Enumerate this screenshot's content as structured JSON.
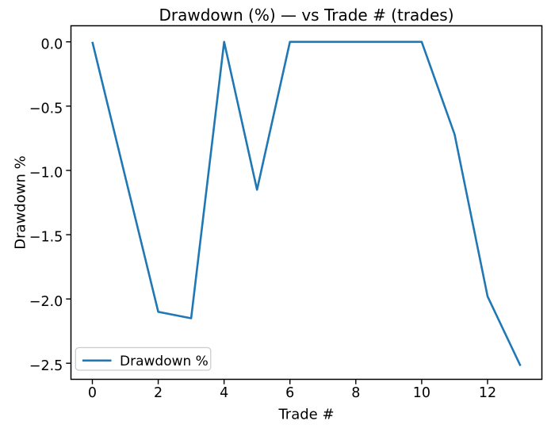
{
  "chart_data": {
    "type": "line",
    "title": "Drawdown (%) — vs Trade # (trades)",
    "xlabel": "Trade #",
    "ylabel": "Drawdown %",
    "legend": [
      "Drawdown %"
    ],
    "legend_position": "lower left",
    "line_color": "#1f77b4",
    "x": [
      0,
      1,
      2,
      3,
      4,
      5,
      6,
      7,
      8,
      9,
      10,
      11,
      12,
      13
    ],
    "y": [
      0,
      -1.05,
      -2.1,
      -2.15,
      0,
      -1.15,
      0,
      0,
      0,
      0,
      0,
      -0.72,
      -1.98,
      -2.52
    ],
    "xlim": [
      -0.65,
      13.65
    ],
    "ylim": [
      -2.625,
      0.125
    ],
    "xticks": [
      0,
      2,
      4,
      6,
      8,
      10,
      12
    ],
    "xtick_labels": [
      "0",
      "2",
      "4",
      "6",
      "8",
      "10",
      "12"
    ],
    "yticks": [
      0,
      -0.5,
      -1.0,
      -1.5,
      -2.0,
      -2.5
    ],
    "ytick_labels": [
      "0.0",
      "−0.5",
      "−1.0",
      "−1.5",
      "−2.0",
      "−2.5"
    ],
    "grid": false
  }
}
